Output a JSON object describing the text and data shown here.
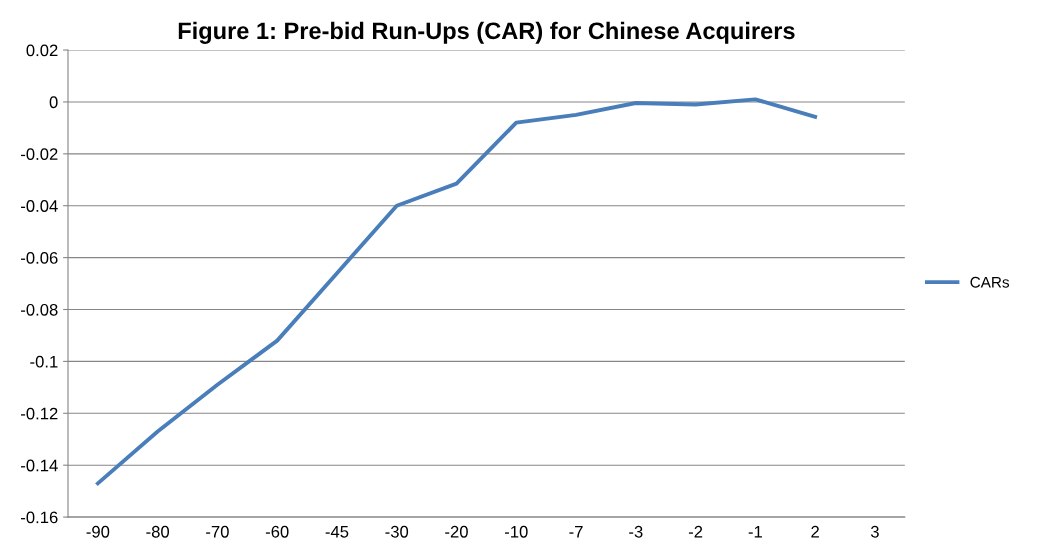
{
  "chart_data": {
    "type": "line",
    "title": "Figure 1: Pre-bid Run-Ups (CAR) for Chinese Acquirers",
    "categories": [
      "-90",
      "-80",
      "-70",
      "-60",
      "-45",
      "-30",
      "-20",
      "-10",
      "-7",
      "-3",
      "-2",
      "-1",
      "2",
      "3"
    ],
    "series": [
      {
        "name": "CARs",
        "color": "#4a7ebb",
        "values": [
          -0.147,
          -0.127,
          -0.109,
          -0.092,
          -0.066,
          -0.04,
          -0.0315,
          -0.008,
          -0.005,
          -0.0004,
          -0.001,
          0.001,
          -0.0057,
          null
        ]
      }
    ],
    "ylim": [
      -0.16,
      0.02
    ],
    "yticks": [
      0.02,
      0,
      -0.02,
      -0.04,
      -0.06,
      -0.08,
      -0.1,
      -0.12,
      -0.14,
      -0.16
    ],
    "grid": "y",
    "legend": "right",
    "marker": "none",
    "line_style": "solid"
  }
}
